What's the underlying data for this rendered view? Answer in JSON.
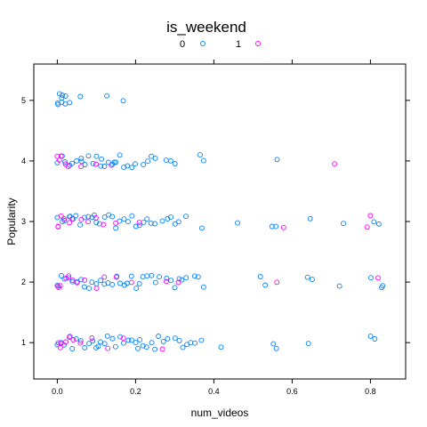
{
  "chart_data": {
    "type": "scatter",
    "title": "is_weekend",
    "xlabel": "num_videos",
    "ylabel": "Popularity",
    "xlim": [
      -0.06,
      0.89
    ],
    "ylim": [
      0.4,
      5.6
    ],
    "xticks": [
      0.0,
      0.2,
      0.4,
      0.6,
      0.8
    ],
    "xtick_labels": [
      "0.0",
      "0.2",
      "0.4",
      "0.6",
      "0.8"
    ],
    "yticks": [
      1,
      2,
      3,
      4,
      5
    ],
    "ytick_labels": [
      "1",
      "2",
      "3",
      "4",
      "5"
    ],
    "jitter": true,
    "grid": false,
    "legend_position": "top",
    "series": [
      {
        "name": "0",
        "color": "#0080ff",
        "marker": "open-circle",
        "points": [
          [
            0.0,
            5
          ],
          [
            0.005,
            5
          ],
          [
            0.01,
            5
          ],
          [
            0.015,
            5
          ],
          [
            0.02,
            5
          ],
          [
            0.03,
            5
          ],
          [
            0.0,
            5
          ],
          [
            0.02,
            5
          ],
          [
            0.06,
            5
          ],
          [
            0.125,
            5
          ],
          [
            0.17,
            5
          ],
          [
            0.01,
            5
          ],
          [
            0.0,
            4
          ],
          [
            0.01,
            4
          ],
          [
            0.02,
            4
          ],
          [
            0.03,
            4
          ],
          [
            0.04,
            4
          ],
          [
            0.05,
            4
          ],
          [
            0.06,
            4
          ],
          [
            0.07,
            4
          ],
          [
            0.08,
            4
          ],
          [
            0.09,
            4
          ],
          [
            0.1,
            4
          ],
          [
            0.11,
            4
          ],
          [
            0.12,
            4
          ],
          [
            0.13,
            4
          ],
          [
            0.14,
            4
          ],
          [
            0.15,
            4
          ],
          [
            0.16,
            4
          ],
          [
            0.17,
            4
          ],
          [
            0.18,
            4
          ],
          [
            0.19,
            4
          ],
          [
            0.2,
            4
          ],
          [
            0.22,
            4
          ],
          [
            0.23,
            4
          ],
          [
            0.24,
            4
          ],
          [
            0.25,
            4
          ],
          [
            0.28,
            4
          ],
          [
            0.29,
            4
          ],
          [
            0.3,
            4
          ],
          [
            0.365,
            4
          ],
          [
            0.375,
            4
          ],
          [
            0.56,
            4
          ],
          [
            0.115,
            4
          ],
          [
            0.145,
            4
          ],
          [
            0.06,
            4
          ],
          [
            0.0,
            3
          ],
          [
            0.01,
            3
          ],
          [
            0.02,
            3
          ],
          [
            0.03,
            3
          ],
          [
            0.04,
            3
          ],
          [
            0.05,
            3
          ],
          [
            0.06,
            3
          ],
          [
            0.07,
            3
          ],
          [
            0.08,
            3
          ],
          [
            0.09,
            3
          ],
          [
            0.1,
            3
          ],
          [
            0.11,
            3
          ],
          [
            0.12,
            3
          ],
          [
            0.13,
            3
          ],
          [
            0.14,
            3
          ],
          [
            0.15,
            3
          ],
          [
            0.16,
            3
          ],
          [
            0.17,
            3
          ],
          [
            0.18,
            3
          ],
          [
            0.19,
            3
          ],
          [
            0.2,
            3
          ],
          [
            0.21,
            3
          ],
          [
            0.22,
            3
          ],
          [
            0.23,
            3
          ],
          [
            0.24,
            3
          ],
          [
            0.25,
            3
          ],
          [
            0.27,
            3
          ],
          [
            0.28,
            3
          ],
          [
            0.29,
            3
          ],
          [
            0.3,
            3
          ],
          [
            0.31,
            3
          ],
          [
            0.33,
            3
          ],
          [
            0.37,
            3
          ],
          [
            0.46,
            3
          ],
          [
            0.55,
            3
          ],
          [
            0.56,
            3
          ],
          [
            0.645,
            3
          ],
          [
            0.73,
            3
          ],
          [
            0.81,
            3
          ],
          [
            0.82,
            3
          ],
          [
            0.035,
            3
          ],
          [
            0.095,
            3
          ],
          [
            0.0,
            2
          ],
          [
            0.01,
            2
          ],
          [
            0.02,
            2
          ],
          [
            0.03,
            2
          ],
          [
            0.04,
            2
          ],
          [
            0.05,
            2
          ],
          [
            0.06,
            2
          ],
          [
            0.07,
            2
          ],
          [
            0.08,
            2
          ],
          [
            0.09,
            2
          ],
          [
            0.1,
            2
          ],
          [
            0.11,
            2
          ],
          [
            0.12,
            2
          ],
          [
            0.13,
            2
          ],
          [
            0.14,
            2
          ],
          [
            0.15,
            2
          ],
          [
            0.16,
            2
          ],
          [
            0.17,
            2
          ],
          [
            0.18,
            2
          ],
          [
            0.19,
            2
          ],
          [
            0.2,
            2
          ],
          [
            0.21,
            2
          ],
          [
            0.22,
            2
          ],
          [
            0.23,
            2
          ],
          [
            0.24,
            2
          ],
          [
            0.25,
            2
          ],
          [
            0.26,
            2
          ],
          [
            0.28,
            2
          ],
          [
            0.29,
            2
          ],
          [
            0.3,
            2
          ],
          [
            0.31,
            2
          ],
          [
            0.32,
            2
          ],
          [
            0.33,
            2
          ],
          [
            0.35,
            2
          ],
          [
            0.36,
            2
          ],
          [
            0.375,
            2
          ],
          [
            0.52,
            2
          ],
          [
            0.53,
            2
          ],
          [
            0.64,
            2
          ],
          [
            0.65,
            2
          ],
          [
            0.72,
            2
          ],
          [
            0.8,
            2
          ],
          [
            0.83,
            2
          ],
          [
            0.83,
            2
          ],
          [
            0.0,
            1
          ],
          [
            0.01,
            1
          ],
          [
            0.02,
            1
          ],
          [
            0.03,
            1
          ],
          [
            0.04,
            1
          ],
          [
            0.05,
            1
          ],
          [
            0.06,
            1
          ],
          [
            0.07,
            1
          ],
          [
            0.08,
            1
          ],
          [
            0.09,
            1
          ],
          [
            0.1,
            1
          ],
          [
            0.11,
            1
          ],
          [
            0.12,
            1
          ],
          [
            0.13,
            1
          ],
          [
            0.14,
            1
          ],
          [
            0.15,
            1
          ],
          [
            0.16,
            1
          ],
          [
            0.17,
            1
          ],
          [
            0.18,
            1
          ],
          [
            0.19,
            1
          ],
          [
            0.2,
            1
          ],
          [
            0.21,
            1
          ],
          [
            0.22,
            1
          ],
          [
            0.23,
            1
          ],
          [
            0.24,
            1
          ],
          [
            0.25,
            1
          ],
          [
            0.26,
            1
          ],
          [
            0.27,
            1
          ],
          [
            0.28,
            1
          ],
          [
            0.3,
            1
          ],
          [
            0.31,
            1
          ],
          [
            0.32,
            1
          ],
          [
            0.33,
            1
          ],
          [
            0.34,
            1
          ],
          [
            0.35,
            1
          ],
          [
            0.37,
            1
          ],
          [
            0.42,
            1
          ],
          [
            0.55,
            1
          ],
          [
            0.56,
            1
          ],
          [
            0.64,
            1
          ],
          [
            0.8,
            1
          ],
          [
            0.81,
            1
          ],
          [
            0.105,
            1
          ],
          [
            0.205,
            1
          ]
        ]
      },
      {
        "name": "1",
        "color": "#ff00ff",
        "marker": "open-circle",
        "points": [
          [
            0.0,
            4
          ],
          [
            0.01,
            4
          ],
          [
            0.02,
            4
          ],
          [
            0.03,
            4
          ],
          [
            0.005,
            4
          ],
          [
            0.06,
            4
          ],
          [
            0.1,
            4
          ],
          [
            0.14,
            4
          ],
          [
            0.71,
            4
          ],
          [
            0.0,
            3
          ],
          [
            0.01,
            3
          ],
          [
            0.02,
            3
          ],
          [
            0.03,
            3
          ],
          [
            0.005,
            3
          ],
          [
            0.04,
            3
          ],
          [
            0.06,
            3
          ],
          [
            0.08,
            3
          ],
          [
            0.1,
            3
          ],
          [
            0.12,
            3
          ],
          [
            0.15,
            3
          ],
          [
            0.21,
            3
          ],
          [
            0.58,
            3
          ],
          [
            0.79,
            3
          ],
          [
            0.8,
            3
          ],
          [
            0.0,
            2
          ],
          [
            0.01,
            2
          ],
          [
            0.02,
            2
          ],
          [
            0.03,
            2
          ],
          [
            0.005,
            2
          ],
          [
            0.04,
            2
          ],
          [
            0.05,
            2
          ],
          [
            0.07,
            2
          ],
          [
            0.1,
            2
          ],
          [
            0.12,
            2
          ],
          [
            0.15,
            2
          ],
          [
            0.19,
            2
          ],
          [
            0.28,
            2
          ],
          [
            0.31,
            2
          ],
          [
            0.56,
            2
          ],
          [
            0.82,
            2
          ],
          [
            0.0,
            1
          ],
          [
            0.01,
            1
          ],
          [
            0.02,
            1
          ],
          [
            0.03,
            1
          ],
          [
            0.005,
            1
          ],
          [
            0.04,
            1
          ],
          [
            0.06,
            1
          ],
          [
            0.09,
            1
          ],
          [
            0.13,
            1
          ],
          [
            0.17,
            1
          ],
          [
            0.27,
            1
          ]
        ]
      }
    ]
  }
}
